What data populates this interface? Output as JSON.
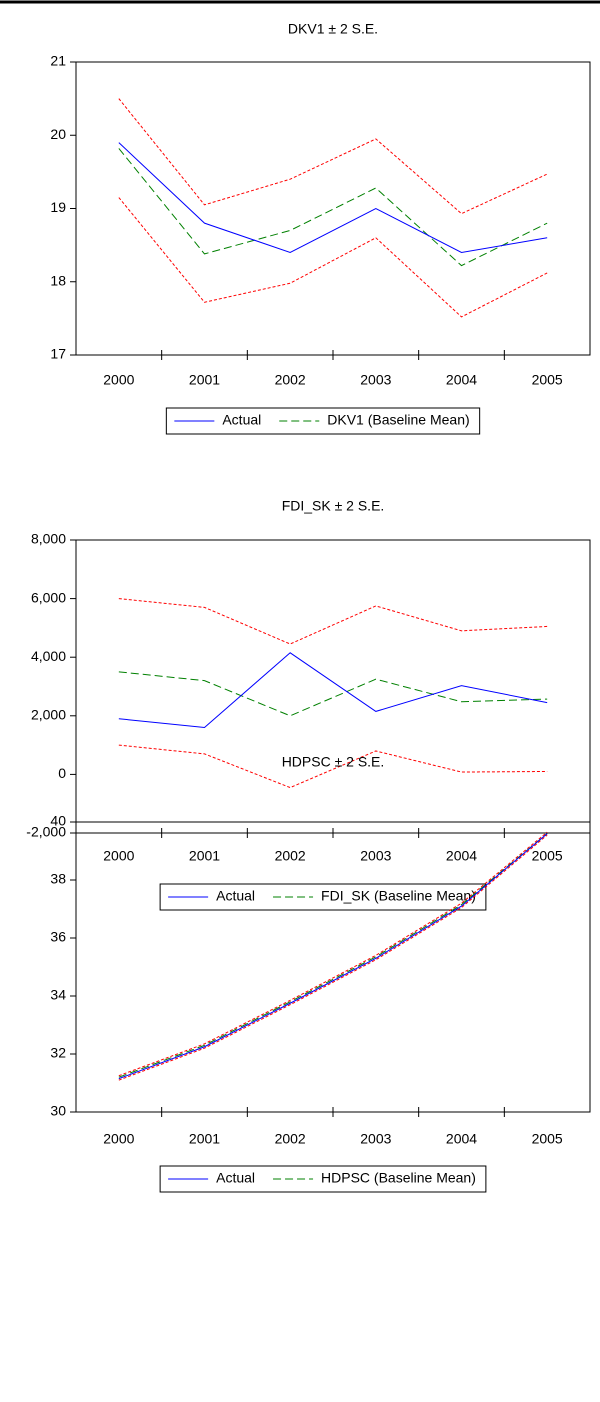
{
  "chart_data": [
    {
      "type": "line",
      "title": "DKV1 ± 2 S.E.",
      "categories": [
        "2000",
        "2001",
        "2002",
        "2003",
        "2004",
        "2005"
      ],
      "ylim": [
        17,
        21
      ],
      "yticks": [
        17,
        18,
        19,
        20,
        21
      ],
      "series": [
        {
          "name": "Actual",
          "color": "#0000ff",
          "dash": "solid",
          "values": [
            19.9,
            18.8,
            18.4,
            19.0,
            18.4,
            18.6
          ]
        },
        {
          "name": "DKV1 (Baseline Mean)",
          "color": "#008000",
          "dash": "long",
          "values": [
            19.82,
            18.38,
            18.7,
            19.28,
            18.22,
            18.8
          ]
        },
        {
          "color": "#ff0000",
          "dash": "short",
          "values": [
            20.5,
            19.05,
            19.4,
            19.95,
            18.93,
            19.47
          ]
        },
        {
          "color": "#ff0000",
          "dash": "short",
          "values": [
            19.15,
            17.72,
            17.98,
            18.6,
            17.52,
            18.12
          ]
        }
      ]
    },
    {
      "type": "line",
      "title": "FDI_SK ± 2 S.E.",
      "categories": [
        "2000",
        "2001",
        "2002",
        "2003",
        "2004",
        "2005"
      ],
      "ylim": [
        -2000,
        8000
      ],
      "yticks": [
        {
          "value": -2000,
          "label": "-2,000"
        },
        0,
        {
          "value": 2000,
          "label": "2,000"
        },
        {
          "value": 4000,
          "label": "4,000"
        },
        {
          "value": 6000,
          "label": "6,000"
        },
        {
          "value": 8000,
          "label": "8,000"
        }
      ],
      "series": [
        {
          "name": "Actual",
          "color": "#0000ff",
          "dash": "solid",
          "values": [
            1900,
            1600,
            4150,
            2150,
            3030,
            2450
          ]
        },
        {
          "name": "FDI_SK (Baseline Mean)",
          "color": "#008000",
          "dash": "long",
          "values": [
            3500,
            3200,
            2000,
            3250,
            2480,
            2570
          ]
        },
        {
          "color": "#ff0000",
          "dash": "short",
          "values": [
            6000,
            5700,
            4450,
            5750,
            4900,
            5050
          ]
        },
        {
          "color": "#ff0000",
          "dash": "short",
          "values": [
            1000,
            700,
            -450,
            800,
            80,
            100
          ]
        }
      ]
    },
    {
      "type": "line",
      "title": "HDPSC ± 2 S.E.",
      "categories": [
        "2000",
        "2001",
        "2002",
        "2003",
        "2004",
        "2005"
      ],
      "ylim": [
        30,
        40
      ],
      "yticks": [
        30,
        32,
        34,
        36,
        38,
        40
      ],
      "series": [
        {
          "name": "Actual",
          "color": "#0000ff",
          "dash": "solid",
          "values": [
            31.15,
            32.25,
            33.75,
            35.3,
            37.1,
            39.6
          ]
        },
        {
          "name": "HDPSC (Baseline Mean)",
          "color": "#008000",
          "dash": "long",
          "values": [
            31.2,
            32.3,
            33.8,
            35.35,
            37.15,
            39.6
          ]
        },
        {
          "color": "#ff0000",
          "dash": "short",
          "values": [
            31.25,
            32.35,
            33.85,
            35.4,
            37.2,
            39.65
          ]
        },
        {
          "color": "#ff0000",
          "dash": "short",
          "values": [
            31.1,
            32.2,
            33.7,
            35.25,
            37.05,
            39.55
          ]
        }
      ]
    }
  ]
}
